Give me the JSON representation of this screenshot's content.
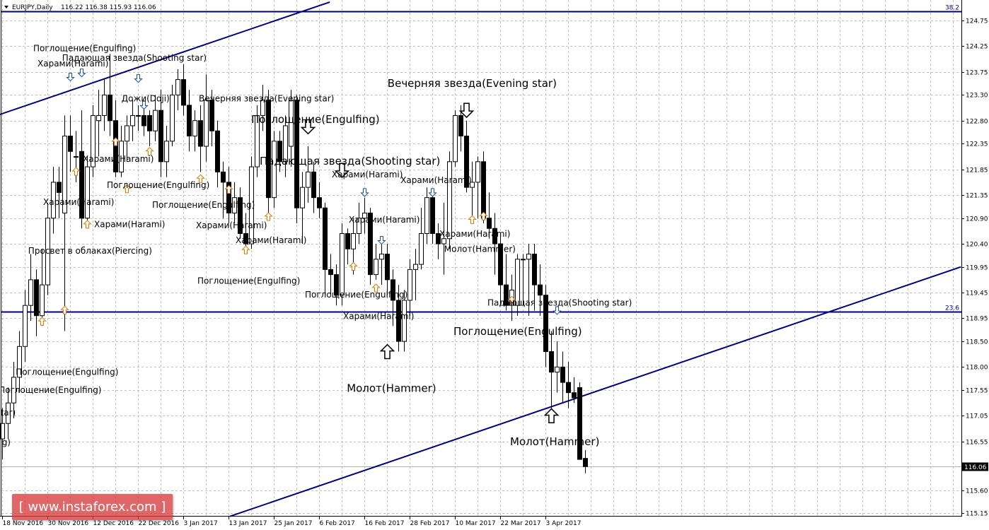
{
  "header": {
    "symbol": "EURJPY,Daily",
    "ohlc_text": "116.22 116.38 115.93 116.06"
  },
  "watermark": {
    "text": "[ www.instaforex.com ]"
  },
  "colors": {
    "line": "#000080",
    "up_arrow": "#e07800",
    "down_arrow": "#1a4fa0",
    "grid": "#c0c0c0",
    "watermark": "#d63c3c"
  },
  "chart_data": {
    "type": "candlestick",
    "title": "EURJPY,Daily",
    "ylim": [
      115.1,
      125.15
    ],
    "grid": true,
    "y_ticks": [
      "124.75",
      "124.25",
      "123.75",
      "123.30",
      "122.80",
      "122.35",
      "121.85",
      "121.35",
      "120.90",
      "120.40",
      "119.95",
      "119.45",
      "118.95",
      "118.50",
      "118.00",
      "117.55",
      "117.05",
      "116.55",
      "115.60",
      "115.15"
    ],
    "current_price": "116.06",
    "x_ticks": [
      {
        "i": 0,
        "label": "18 Nov 2016"
      },
      {
        "i": 8,
        "label": "30 Nov 2016"
      },
      {
        "i": 16,
        "label": "12 Dec 2016"
      },
      {
        "i": 24,
        "label": "22 Dec 2016"
      },
      {
        "i": 32,
        "label": "3 Jan 2017"
      },
      {
        "i": 40,
        "label": "13 Jan 2017"
      },
      {
        "i": 48,
        "label": "25 Jan 2017"
      },
      {
        "i": 56,
        "label": "6 Feb 2017"
      },
      {
        "i": 64,
        "label": "16 Feb 2017"
      },
      {
        "i": 72,
        "label": "28 Feb 2017"
      },
      {
        "i": 80,
        "label": "10 Mar 2017"
      },
      {
        "i": 88,
        "label": "22 Mar 2017"
      },
      {
        "i": 96,
        "label": "3 Apr 2017"
      }
    ],
    "ohlc": [
      [
        116.6,
        117.2,
        116.2,
        116.9
      ],
      [
        116.9,
        117.6,
        116.6,
        117.3
      ],
      [
        117.3,
        118.1,
        117.0,
        117.8
      ],
      [
        117.8,
        118.7,
        117.5,
        118.4
      ],
      [
        118.4,
        119.5,
        118.1,
        119.2
      ],
      [
        119.2,
        120.2,
        118.9,
        119.7
      ],
      [
        119.7,
        119.9,
        118.6,
        119.0
      ],
      [
        119.0,
        120.3,
        118.8,
        119.6
      ],
      [
        119.6,
        121.2,
        119.4,
        120.9
      ],
      [
        120.9,
        121.9,
        120.6,
        121.6
      ],
      [
        121.6,
        121.9,
        120.9,
        121.4
      ],
      [
        121.0,
        122.9,
        118.7,
        122.5
      ],
      [
        122.5,
        122.9,
        121.8,
        122.2
      ],
      [
        122.1,
        122.6,
        121.6,
        122.1
      ],
      [
        122.2,
        123.0,
        120.7,
        120.9
      ],
      [
        120.9,
        122.1,
        120.8,
        121.9
      ],
      [
        121.9,
        123.1,
        121.7,
        122.9
      ],
      [
        122.8,
        123.4,
        122.1,
        122.9
      ],
      [
        122.9,
        123.6,
        122.6,
        123.3
      ],
      [
        123.3,
        124.1,
        122.5,
        122.8
      ],
      [
        122.8,
        123.2,
        121.7,
        121.8
      ],
      [
        121.8,
        122.7,
        121.7,
        122.4
      ],
      [
        122.4,
        122.9,
        122.0,
        122.7
      ],
      [
        122.7,
        123.2,
        122.4,
        122.9
      ],
      [
        122.9,
        123.1,
        122.6,
        122.9
      ],
      [
        122.9,
        123.2,
        122.5,
        122.7
      ],
      [
        122.9,
        123.0,
        122.3,
        122.6
      ],
      [
        122.6,
        123.3,
        122.4,
        123.0
      ],
      [
        123.0,
        123.4,
        121.7,
        122.0
      ],
      [
        122.0,
        122.7,
        121.7,
        122.4
      ],
      [
        122.4,
        123.5,
        122.3,
        123.3
      ],
      [
        123.3,
        123.8,
        123.0,
        123.6
      ],
      [
        123.6,
        123.9,
        122.9,
        123.1
      ],
      [
        123.1,
        123.4,
        122.2,
        122.5
      ],
      [
        122.5,
        123.0,
        122.2,
        122.8
      ],
      [
        122.8,
        123.1,
        121.8,
        122.3
      ],
      [
        122.3,
        123.7,
        122.0,
        123.2
      ],
      [
        123.2,
        123.4,
        122.3,
        122.6
      ],
      [
        122.6,
        122.8,
        121.5,
        121.8
      ],
      [
        121.8,
        122.0,
        120.9,
        121.6
      ],
      [
        121.6,
        121.9,
        120.8,
        121.0
      ],
      [
        121.0,
        121.6,
        120.8,
        121.3
      ],
      [
        121.3,
        121.5,
        120.5,
        120.6
      ],
      [
        120.6,
        121.0,
        120.3,
        120.4
      ],
      [
        120.4,
        122.1,
        120.3,
        121.9
      ],
      [
        121.9,
        123.1,
        121.7,
        122.9
      ],
      [
        122.9,
        123.5,
        122.6,
        123.2
      ],
      [
        123.2,
        123.4,
        120.9,
        121.3
      ],
      [
        121.3,
        122.6,
        121.1,
        122.4
      ],
      [
        122.4,
        122.6,
        121.8,
        122.0
      ],
      [
        122.0,
        122.9,
        121.7,
        122.7
      ],
      [
        122.3,
        123.4,
        121.9,
        123.2
      ],
      [
        123.2,
        123.3,
        120.8,
        121.1
      ],
      [
        121.1,
        121.8,
        120.4,
        121.5
      ],
      [
        121.5,
        122.3,
        121.2,
        121.8
      ],
      [
        121.8,
        122.0,
        121.0,
        121.3
      ],
      [
        121.3,
        121.6,
        120.9,
        121.1
      ],
      [
        121.1,
        121.2,
        119.4,
        119.9
      ],
      [
        119.9,
        120.2,
        119.4,
        119.8
      ],
      [
        119.8,
        120.0,
        119.2,
        119.4
      ],
      [
        119.4,
        120.8,
        119.2,
        120.6
      ],
      [
        120.6,
        120.7,
        120.0,
        120.3
      ],
      [
        120.3,
        120.9,
        119.8,
        120.6
      ],
      [
        120.6,
        121.2,
        120.4,
        120.9
      ],
      [
        120.9,
        121.3,
        120.6,
        121.0
      ],
      [
        121.0,
        121.1,
        119.6,
        119.8
      ],
      [
        119.8,
        120.4,
        119.7,
        120.1
      ],
      [
        120.1,
        120.4,
        119.6,
        120.2
      ],
      [
        120.2,
        120.4,
        119.4,
        119.7
      ],
      [
        119.7,
        119.9,
        118.8,
        119.3
      ],
      [
        119.3,
        119.6,
        118.3,
        118.5
      ],
      [
        118.5,
        119.5,
        118.3,
        119.3
      ],
      [
        119.3,
        120.1,
        119.0,
        119.9
      ],
      [
        119.9,
        120.3,
        119.3,
        120.0
      ],
      [
        120.0,
        121.1,
        119.9,
        120.6
      ],
      [
        120.6,
        121.5,
        120.4,
        121.3
      ],
      [
        121.3,
        121.4,
        120.4,
        120.6
      ],
      [
        120.6,
        120.8,
        120.1,
        120.4
      ],
      [
        120.4,
        121.2,
        119.8,
        120.5
      ],
      [
        120.5,
        122.2,
        120.3,
        122.0
      ],
      [
        122.0,
        123.0,
        121.9,
        122.9
      ],
      [
        122.9,
        123.1,
        122.2,
        122.5
      ],
      [
        122.5,
        122.8,
        121.4,
        121.5
      ],
      [
        121.5,
        122.0,
        120.9,
        121.6
      ],
      [
        121.6,
        122.1,
        120.9,
        122.0
      ],
      [
        122.0,
        122.2,
        120.8,
        120.9
      ],
      [
        120.9,
        121.4,
        120.5,
        120.7
      ],
      [
        120.7,
        121.0,
        119.8,
        120.4
      ],
      [
        120.4,
        120.6,
        119.2,
        119.6
      ],
      [
        119.6,
        120.2,
        119.1,
        119.2
      ],
      [
        119.2,
        119.8,
        118.9,
        119.5
      ],
      [
        119.2,
        120.2,
        119.0,
        120.1
      ],
      [
        120.1,
        120.2,
        119.2,
        120.1
      ],
      [
        120.1,
        120.4,
        119.0,
        120.2
      ],
      [
        120.2,
        120.4,
        119.1,
        119.6
      ],
      [
        119.6,
        120.0,
        119.0,
        119.4
      ],
      [
        119.4,
        119.6,
        118.0,
        118.3
      ],
      [
        118.3,
        118.7,
        117.2,
        117.9
      ],
      [
        117.9,
        118.5,
        117.5,
        118.0
      ],
      [
        118.0,
        118.3,
        117.3,
        117.7
      ],
      [
        117.7,
        118.1,
        117.2,
        117.5
      ],
      [
        117.5,
        117.8,
        117.3,
        117.4
      ],
      [
        117.6,
        117.7,
        116.2,
        116.2
      ],
      [
        116.22,
        116.38,
        115.93,
        116.06
      ]
    ],
    "horizontal_levels": [
      {
        "price": 124.93,
        "label": "38.2"
      },
      {
        "price": 119.08,
        "label": "23.6"
      }
    ],
    "trend_lines": [
      {
        "i1": -0.4,
        "p1": 122.92,
        "i2": 57.9,
        "p2": 125.11
      },
      {
        "i1": 40.25,
        "p1": 115.09,
        "i2": 169.4,
        "p2": 119.95
      }
    ],
    "patterns": [
      {
        "text": "Поглощение(Engulfing)",
        "i": 5.5,
        "p": 124.21,
        "big": false
      },
      {
        "text": "Падающая звезда(Shooting star)",
        "i": 10.6,
        "p": 124.02,
        "big": false
      },
      {
        "text": "Харами(Harami)",
        "i": 6.25,
        "p": 123.91,
        "big": false
      },
      {
        "text": "Дожи(Doji)",
        "i": 21.1,
        "p": 123.23,
        "big": false
      },
      {
        "text": "Вечерняя звезда(Evening star)",
        "i": 34.75,
        "p": 123.23,
        "big": false
      },
      {
        "text": "Поглощение(Engulfing)",
        "i": 44,
        "p": 122.81,
        "big": true
      },
      {
        "text": "Падающая звезда(Shooting star)",
        "i": 45.5,
        "p": 122.0,
        "big": true
      },
      {
        "text": "Харами(Harami)",
        "i": 14.25,
        "p": 122.05,
        "big": false
      },
      {
        "text": "Харами(Harami)",
        "i": 58.25,
        "p": 121.75,
        "big": false
      },
      {
        "text": "Харами(Harami)",
        "i": 70.4,
        "p": 121.64,
        "big": false
      },
      {
        "text": "Поглощение(Engulfing)",
        "i": 18.5,
        "p": 121.54,
        "big": false
      },
      {
        "text": "Поглощение(Engulfing)",
        "i": 26.5,
        "p": 121.16,
        "big": false
      },
      {
        "text": "Харами(Harami)",
        "i": 7.25,
        "p": 121.21,
        "big": false
      },
      {
        "text": "Харами(Harami)",
        "i": 16.25,
        "p": 120.78,
        "big": false
      },
      {
        "text": "Харами(Harami)",
        "i": 34.25,
        "p": 120.76,
        "big": false
      },
      {
        "text": "Харами(Harami)",
        "i": 61.25,
        "p": 120.87,
        "big": false
      },
      {
        "text": "Харами(Harami)",
        "i": 77.25,
        "p": 120.59,
        "big": false
      },
      {
        "text": "Харами(Harami)",
        "i": 41.25,
        "p": 120.47,
        "big": false
      },
      {
        "text": "Молот(Hammer)",
        "i": 78.1,
        "p": 120.3,
        "big": false
      },
      {
        "text": "Просвет в облаках(Piercing)",
        "i": 4.6,
        "p": 120.26,
        "big": false
      },
      {
        "text": "Поглощение(Engulfing)",
        "i": 34.5,
        "p": 119.68,
        "big": false
      },
      {
        "text": "Поглощение(Engulfing)",
        "i": 53.5,
        "p": 119.41,
        "big": false
      },
      {
        "text": "Падающая звезда(Shooting star)",
        "i": 85.75,
        "p": 119.25,
        "big": false
      },
      {
        "text": "Харами(Harami)",
        "i": 60.25,
        "p": 118.99,
        "big": false
      },
      {
        "text": "Поглощение(Engulfing)",
        "i": 79.75,
        "p": 118.68,
        "big": true
      },
      {
        "text": "Поглощение(Engulfing)",
        "i": 2.4,
        "p": 117.9,
        "big": false
      },
      {
        "text": "Поглощение(Engulfing)",
        "i": -0.6,
        "p": 117.55,
        "big": false
      },
      {
        "text": "Падающая звезда(Shooting star)",
        "i": 2.4,
        "p": 117.11,
        "big": false,
        "anchor": "end"
      },
      {
        "text": "Поглощение(Engulfing)",
        "i": 1.5,
        "p": 116.53,
        "big": false,
        "anchor": "end"
      },
      {
        "text": "Вечерняя звезда(Evening star)",
        "i": 68.1,
        "p": 123.51,
        "big": true
      },
      {
        "text": "Молот(Hammer)",
        "i": 60.9,
        "p": 117.57,
        "big": true
      },
      {
        "text": "Молот(Hammer)",
        "i": 89.75,
        "p": 116.53,
        "big": true
      }
    ],
    "arrows": [
      {
        "i": 7,
        "p": 118.89,
        "dir": "up"
      },
      {
        "i": 11,
        "p": 119.11,
        "dir": "up"
      },
      {
        "i": 13,
        "p": 121.81,
        "dir": "up"
      },
      {
        "i": 15,
        "p": 120.78,
        "dir": "up"
      },
      {
        "i": 20,
        "p": 122.39,
        "dir": "up"
      },
      {
        "i": 22,
        "p": 121.47,
        "dir": "up"
      },
      {
        "i": 26,
        "p": 122.2,
        "dir": "up"
      },
      {
        "i": 35,
        "p": 121.67,
        "dir": "up"
      },
      {
        "i": 40,
        "p": 121.46,
        "dir": "up"
      },
      {
        "i": 43,
        "p": 120.28,
        "dir": "up"
      },
      {
        "i": 47,
        "p": 120.93,
        "dir": "up"
      },
      {
        "i": 62,
        "p": 119.96,
        "dir": "up"
      },
      {
        "i": 66,
        "p": 119.54,
        "dir": "up"
      },
      {
        "i": 83,
        "p": 120.87,
        "dir": "up"
      },
      {
        "i": 85,
        "p": 120.94,
        "dir": "up"
      },
      {
        "i": 90,
        "p": 119.3,
        "dir": "up"
      },
      {
        "i": 12,
        "p": 123.65,
        "dir": "down"
      },
      {
        "i": 14,
        "p": 123.73,
        "dir": "down"
      },
      {
        "i": 24,
        "p": 123.62,
        "dir": "down"
      },
      {
        "i": 25,
        "p": 123.1,
        "dir": "down"
      },
      {
        "i": 64,
        "p": 121.4,
        "dir": "down"
      },
      {
        "i": 67,
        "p": 120.47,
        "dir": "down"
      },
      {
        "i": 76,
        "p": 121.4,
        "dir": "down"
      },
      {
        "i": 98,
        "p": 119.1,
        "dir": "down"
      },
      {
        "i": 54,
        "p": 122.68,
        "dir": "down",
        "big": true
      },
      {
        "i": 60,
        "p": 121.83,
        "dir": "down",
        "big": true
      },
      {
        "i": 82,
        "p": 123.0,
        "dir": "down",
        "big": true
      },
      {
        "i": 68,
        "p": 118.3,
        "dir": "up",
        "big": true
      },
      {
        "i": 97,
        "p": 117.05,
        "dir": "up",
        "big": true
      }
    ]
  }
}
